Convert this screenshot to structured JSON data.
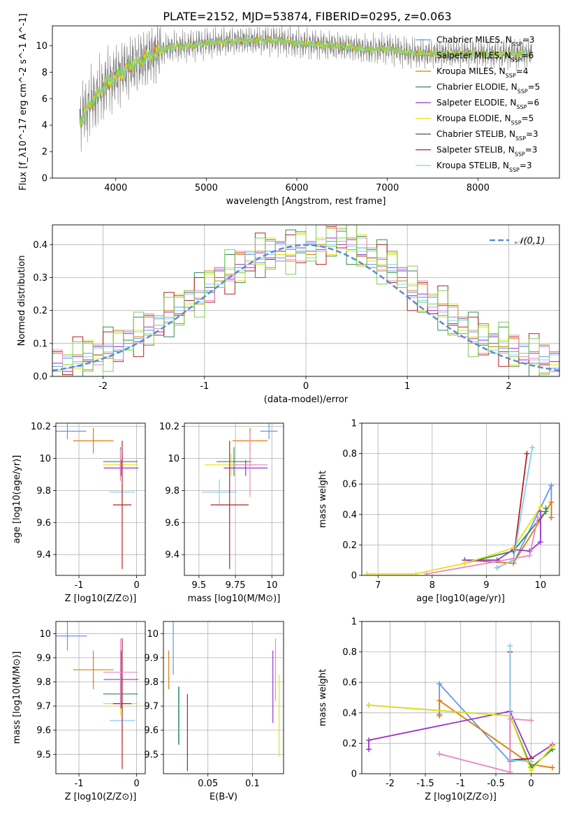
{
  "figure_title": "PLATE=2152, MJD=53874, FIBERID=0295, z=0.063",
  "colors": [
    "#6495ed",
    "#ff7f0e",
    "#e07b00",
    "#2e8b57",
    "#9932cc",
    "#e4e414",
    "#505050",
    "#b22222",
    "#87cefa",
    "#e78ac3",
    "#7ad151",
    "#8dd3c7"
  ],
  "legend_models": [
    {
      "model": "Chabrier MILES",
      "nssp": "3",
      "color": "#6495ed"
    },
    {
      "model": "Salpeter MILES",
      "nssp": "6",
      "color": "#ff7f0e"
    },
    {
      "model": "Kroupa MILES",
      "nssp": "4",
      "color": "#e07b00"
    },
    {
      "model": "Chabrier ELODIE",
      "nssp": "5",
      "color": "#2e8b57"
    },
    {
      "model": "Salpeter ELODIE",
      "nssp": "6",
      "color": "#9932cc"
    },
    {
      "model": "Kroupa ELODIE",
      "nssp": "5",
      "color": "#e4e414"
    },
    {
      "model": "Chabrier STELIB",
      "nssp": "3",
      "color": "#505050"
    },
    {
      "model": "Salpeter STELIB",
      "nssp": "3",
      "color": "#b22222"
    },
    {
      "model": "Kroupa STELIB",
      "nssp": "3",
      "color": "#87cefa"
    }
  ],
  "chart_data": [
    {
      "id": "spectrum",
      "type": "line",
      "xlabel": "wavelength [Angstrom, rest frame]",
      "ylabel": "Flux [f_λ10^-17 erg cm^-2 s^-1 A^-1]",
      "xlim": [
        3300,
        8900
      ],
      "ylim": [
        0,
        11.5
      ],
      "xticks": [
        4000,
        5000,
        6000,
        7000,
        8000
      ],
      "yticks": [
        0,
        2,
        4,
        6,
        8,
        10
      ],
      "series_note_free": true,
      "continuum_x": [
        3600,
        3700,
        3800,
        3900,
        4000,
        4100,
        4200,
        4300,
        4400,
        4500,
        4600,
        4800,
        5000,
        5200,
        5400,
        5600,
        5800,
        6000,
        6200,
        6400,
        6600,
        6800,
        7000,
        7200,
        7400
      ],
      "continuum_y": [
        4.2,
        5.5,
        6.3,
        7.2,
        7.6,
        8.2,
        8.6,
        8.9,
        9.3,
        9.6,
        9.9,
        10.0,
        10.2,
        10.3,
        10.4,
        10.4,
        10.4,
        10.2,
        10.1,
        10.0,
        9.9,
        9.7,
        9.8,
        9.5,
        9.4
      ]
    },
    {
      "id": "residuals",
      "type": "histogram",
      "xlabel": "(data-model)/error",
      "ylabel": "Normed distribution",
      "xlim": [
        -2.5,
        2.5
      ],
      "ylim": [
        0,
        0.46
      ],
      "xticks": [
        -2,
        -1,
        0,
        1,
        2
      ],
      "yticks": [
        0.0,
        0.1,
        0.2,
        0.3,
        0.4
      ],
      "legend": "𝒩(0,1)",
      "bin_centers": [
        -2.45,
        -2.35,
        -2.25,
        -2.15,
        -2.05,
        -1.95,
        -1.85,
        -1.75,
        -1.65,
        -1.55,
        -1.45,
        -1.35,
        -1.25,
        -1.15,
        -1.05,
        -0.95,
        -0.85,
        -0.75,
        -0.65,
        -0.55,
        -0.45,
        -0.35,
        -0.25,
        -0.15,
        -0.05,
        0.05,
        0.15,
        0.25,
        0.35,
        0.45,
        0.55,
        0.65,
        0.75,
        0.85,
        0.95,
        1.05,
        1.15,
        1.25,
        1.35,
        1.45,
        1.55,
        1.65,
        1.75,
        1.85,
        1.95,
        2.05,
        2.15,
        2.25,
        2.35,
        2.45
      ],
      "values": [
        0.03,
        0.035,
        0.045,
        0.06,
        0.065,
        0.075,
        0.09,
        0.11,
        0.12,
        0.14,
        0.155,
        0.18,
        0.2,
        0.23,
        0.24,
        0.27,
        0.3,
        0.31,
        0.33,
        0.35,
        0.36,
        0.37,
        0.38,
        0.37,
        0.39,
        0.38,
        0.4,
        0.41,
        0.42,
        0.4,
        0.38,
        0.36,
        0.34,
        0.33,
        0.3,
        0.26,
        0.24,
        0.22,
        0.2,
        0.17,
        0.15,
        0.12,
        0.11,
        0.1,
        0.09,
        0.075,
        0.07,
        0.055,
        0.05,
        0.045
      ]
    },
    {
      "id": "age_vs_Z",
      "type": "errorbar",
      "xlabel": "Z [log10(Z/Z⊙)]",
      "ylabel": "age [log10(age/yr)]",
      "xlim": [
        -1.4,
        0.15
      ],
      "ylim": [
        9.27,
        10.22
      ],
      "xticks": [
        -1,
        0
      ],
      "yticks": [
        9.4,
        9.6,
        9.8,
        10.0,
        10.2
      ],
      "points": [
        {
          "x": -1.2,
          "y": 10.17,
          "xerr": 0.33,
          "yerr": 0.05,
          "c": 0
        },
        {
          "x": -0.75,
          "y": 10.11,
          "xerr": 0.35,
          "yerr": 0.08,
          "c": 2
        },
        {
          "x": -0.28,
          "y": 9.98,
          "xerr": 0.3,
          "yerr": 0.09,
          "c": 3
        },
        {
          "x": -0.28,
          "y": 9.96,
          "xerr": 0.3,
          "yerr": 0.07,
          "c": 5
        },
        {
          "x": -0.27,
          "y": 9.94,
          "xerr": 0.3,
          "yerr": 0.05,
          "c": 4
        },
        {
          "x": -0.25,
          "y": 9.79,
          "xerr": 0.22,
          "yerr": 0.05,
          "c": 8
        },
        {
          "x": -0.25,
          "y": 9.71,
          "xerr": 0.16,
          "yerr": 0.4,
          "c": 7
        },
        {
          "x": -0.28,
          "y": 9.96,
          "xerr": 0.02,
          "yerr": 0.1,
          "c": 9
        }
      ]
    },
    {
      "id": "age_vs_mass",
      "type": "errorbar",
      "xlabel": "mass [log10(M/M⊙)]",
      "ylabel": "",
      "xlim": [
        9.4,
        10.08
      ],
      "ylim": [
        9.27,
        10.22
      ],
      "xticks": [
        9.5,
        9.75,
        10.0
      ],
      "yticks": [
        9.4,
        9.6,
        9.8,
        10.0,
        10.2
      ],
      "points": [
        {
          "x": 9.98,
          "y": 10.17,
          "xerr": 0.06,
          "yerr": 0.05,
          "c": 0
        },
        {
          "x": 9.85,
          "y": 10.11,
          "xerr": 0.12,
          "yerr": 0.08,
          "c": 2
        },
        {
          "x": 9.74,
          "y": 9.98,
          "xerr": 0.12,
          "yerr": 0.09,
          "c": 3
        },
        {
          "x": 9.72,
          "y": 9.96,
          "xerr": 0.18,
          "yerr": 0.07,
          "c": 5
        },
        {
          "x": 9.82,
          "y": 9.94,
          "xerr": 0.15,
          "yerr": 0.05,
          "c": 4
        },
        {
          "x": 9.64,
          "y": 9.79,
          "xerr": 0.12,
          "yerr": 0.08,
          "c": 8
        },
        {
          "x": 9.71,
          "y": 9.71,
          "xerr": 0.13,
          "yerr": 0.4,
          "c": 7
        },
        {
          "x": 9.85,
          "y": 9.96,
          "xerr": 0.12,
          "yerr": 0.2,
          "c": 9
        }
      ]
    },
    {
      "id": "mass_weight_vs_age",
      "type": "line",
      "xlabel": "age [log10(age/yr)]",
      "ylabel": "mass weight",
      "xlim": [
        6.7,
        10.35
      ],
      "ylim": [
        0,
        1
      ],
      "xticks": [
        7,
        8,
        9,
        10
      ],
      "yticks": [
        0.0,
        0.2,
        0.4,
        0.6,
        0.8,
        1.0
      ],
      "series": [
        {
          "c": 0,
          "x": [
            9.5,
            10.2,
            10.2
          ],
          "y": [
            0.08,
            0.59,
            0.38
          ]
        },
        {
          "c": 2,
          "x": [
            8.6,
            9.5,
            10.2,
            10.2
          ],
          "y": [
            0.1,
            0.08,
            0.48,
            0.38
          ]
        },
        {
          "c": 3,
          "x": [
            8.6,
            9.5,
            10.1,
            10.1
          ],
          "y": [
            0.08,
            0.16,
            0.42,
            0.44
          ]
        },
        {
          "c": 4,
          "x": [
            8.6,
            9.2,
            9.5,
            9.8,
            10.0,
            10.0
          ],
          "y": [
            0.1,
            0.1,
            0.17,
            0.16,
            0.22,
            0.42
          ]
        },
        {
          "c": 5,
          "x": [
            6.8,
            7.7,
            8.6,
            9.5,
            10.0
          ],
          "y": [
            0.01,
            0.01,
            0.08,
            0.18,
            0.45
          ]
        },
        {
          "c": 7,
          "x": [
            9.2,
            9.5,
            9.75
          ],
          "y": [
            0.05,
            0.1,
            0.8
          ]
        },
        {
          "c": 8,
          "x": [
            9.2,
            9.5,
            9.85
          ],
          "y": [
            0.05,
            0.1,
            0.84
          ]
        },
        {
          "c": 9,
          "x": [
            7.9,
            9.8,
            9.95
          ],
          "y": [
            0.01,
            0.13,
            0.38
          ]
        }
      ]
    },
    {
      "id": "mass_vs_Z",
      "type": "errorbar",
      "xlabel": "Z [log10(Z/Z⊙)]",
      "ylabel": "mass [log10(M/M⊙)]",
      "xlim": [
        -1.4,
        0.15
      ],
      "ylim": [
        9.42,
        10.05
      ],
      "xticks": [
        -1,
        0
      ],
      "yticks": [
        9.5,
        9.6,
        9.7,
        9.8,
        9.9,
        10.0
      ],
      "points": [
        {
          "x": -1.2,
          "y": 9.99,
          "xerr": 0.34,
          "yerr": 0.06,
          "c": 0
        },
        {
          "x": -0.75,
          "y": 9.85,
          "xerr": 0.35,
          "yerr": 0.08,
          "c": 2
        },
        {
          "x": -0.28,
          "y": 9.75,
          "xerr": 0.3,
          "yerr": 0.05,
          "c": 3
        },
        {
          "x": -0.28,
          "y": 9.71,
          "xerr": 0.3,
          "yerr": 0.05,
          "c": 5
        },
        {
          "x": -0.27,
          "y": 9.81,
          "xerr": 0.3,
          "yerr": 0.12,
          "c": 4
        },
        {
          "x": -0.25,
          "y": 9.64,
          "xerr": 0.22,
          "yerr": 0.08,
          "c": 8
        },
        {
          "x": -0.25,
          "y": 9.71,
          "xerr": 0.16,
          "yerr": 0.27,
          "c": 7
        },
        {
          "x": -0.28,
          "y": 9.84,
          "xerr": 0.3,
          "yerr": 0.14,
          "c": 9
        }
      ]
    },
    {
      "id": "mass_vs_ebv",
      "type": "errorbar",
      "xlabel": "E(B-V)",
      "ylabel": "",
      "xlim": [
        0.0,
        0.135
      ],
      "ylim": [
        9.42,
        10.05
      ],
      "xticks": [
        0.05,
        0.1
      ],
      "yticks": [
        9.5,
        9.6,
        9.7,
        9.8,
        9.9,
        10.0
      ],
      "points": [
        {
          "x": 0.011,
          "y": 9.94,
          "xerr": 0.0,
          "yerr": 0.11,
          "c": 0
        },
        {
          "x": 0.006,
          "y": 9.85,
          "xerr": 0.0,
          "yerr": 0.08,
          "c": 2
        },
        {
          "x": 0.017,
          "y": 9.66,
          "xerr": 0.0,
          "yerr": 0.12,
          "c": 3
        },
        {
          "x": 0.123,
          "y": 9.78,
          "xerr": 0.0,
          "yerr": 0.15,
          "c": 4
        },
        {
          "x": 0.13,
          "y": 9.66,
          "xerr": 0.0,
          "yerr": 0.17,
          "c": 5
        },
        {
          "x": 0.018,
          "y": 9.66,
          "xerr": 0.0,
          "yerr": 0.12,
          "c": 8
        },
        {
          "x": 0.027,
          "y": 9.59,
          "xerr": 0.0,
          "yerr": 0.16,
          "c": 7
        },
        {
          "x": 0.126,
          "y": 9.85,
          "xerr": 0.0,
          "yerr": 0.13,
          "c": 9
        }
      ]
    },
    {
      "id": "mass_weight_vs_Z",
      "type": "line",
      "xlabel": "Z [log10(Z/Z⊙)]",
      "ylabel": "mass weight",
      "xlim": [
        -2.4,
        0.4
      ],
      "ylim": [
        0,
        1
      ],
      "xticks": [
        -2.0,
        -1.5,
        -1.0,
        -0.5,
        0.0
      ],
      "yticks": [
        0.0,
        0.2,
        0.4,
        0.6,
        0.8,
        1.0
      ],
      "series": [
        {
          "c": 0,
          "x": [
            -1.3,
            -1.3,
            -0.3,
            0.0
          ],
          "y": [
            0.39,
            0.59,
            0.08,
            0.1
          ]
        },
        {
          "c": 2,
          "x": [
            -1.3,
            -1.3,
            0.0,
            0.3
          ],
          "y": [
            0.38,
            0.48,
            0.06,
            0.04
          ]
        },
        {
          "c": 3,
          "x": [
            -2.3,
            -0.3,
            0.0,
            0.3
          ],
          "y": [
            0.45,
            0.38,
            0.04,
            0.16
          ]
        },
        {
          "c": 4,
          "x": [
            -2.3,
            -2.3,
            -0.3,
            0.0,
            0.3
          ],
          "y": [
            0.16,
            0.22,
            0.41,
            0.1,
            0.19
          ]
        },
        {
          "c": 5,
          "x": [
            -2.3,
            -0.3,
            0.0,
            0.3
          ],
          "y": [
            0.45,
            0.38,
            0.02,
            0.18
          ]
        },
        {
          "c": 7,
          "x": [
            -0.3,
            -0.3,
            0.0
          ],
          "y": [
            0.8,
            0.09,
            0.1
          ]
        },
        {
          "c": 8,
          "x": [
            -0.3,
            -0.3,
            0.0
          ],
          "y": [
            0.84,
            0.09,
            0.08
          ]
        },
        {
          "c": 9,
          "x": [
            -1.3,
            -1.3,
            -0.3,
            -0.3,
            0.0
          ],
          "y": [
            0.13,
            0.13,
            0.01,
            0.36,
            0.35
          ]
        }
      ]
    }
  ]
}
